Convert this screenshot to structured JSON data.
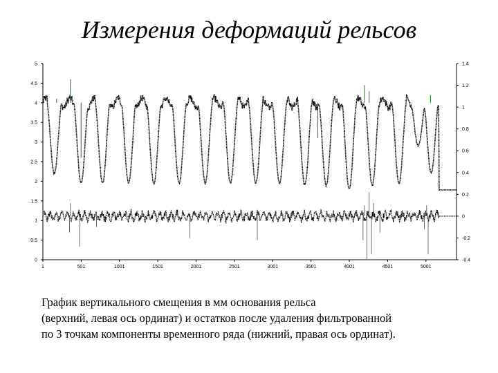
{
  "title": "Измерения деформаций рельсов",
  "caption": {
    "line1": "График вертикального смещения в мм основания рельса",
    "line2": "(верхний, левая ось ординат) и остатков после удаления фильтрованной",
    "line3": "по 3 точкам компоненты временного ряда (нижний, правая ось ординат)."
  },
  "chart_data": {
    "type": "line",
    "title": "",
    "xlabel": "",
    "ylabel": "",
    "xlim": [
      1,
      5400
    ],
    "x_ticks": [
      "1",
      "501",
      "1001",
      "1501",
      "2001",
      "2501",
      "3001",
      "3501",
      "4001",
      "4501",
      "5001"
    ],
    "y_left": {
      "lim": [
        0,
        5
      ],
      "ticks": [
        "0",
        "0.5",
        "1",
        "1.5",
        "2",
        "2.5",
        "3",
        "3.5",
        "4",
        "4.5",
        "5"
      ]
    },
    "y_right": {
      "lim": [
        -0.4,
        1.4
      ],
      "ticks": [
        "-0.4",
        "-0.2",
        "0",
        "0.2",
        "0.4",
        "0.6",
        "0.8",
        "1",
        "1.2",
        "1.4"
      ]
    },
    "grid": false,
    "series": [
      {
        "axis": "left",
        "color": "#000000",
        "highlight_color": "#1a7a1a",
        "baseline": 4.0,
        "tail_value": 1.78,
        "tail_from": 5170,
        "dips": [
          {
            "center": 150,
            "min": 2.2
          },
          {
            "center": 500,
            "min": 1.95
          },
          {
            "center": 780,
            "min": 1.95
          },
          {
            "center": 1120,
            "min": 1.95
          },
          {
            "center": 1450,
            "min": 1.95
          },
          {
            "center": 1780,
            "min": 1.95
          },
          {
            "center": 2120,
            "min": 1.95
          },
          {
            "center": 2450,
            "min": 1.95
          },
          {
            "center": 2780,
            "min": 1.95
          },
          {
            "center": 3090,
            "min": 1.95
          },
          {
            "center": 3420,
            "min": 1.9
          },
          {
            "center": 3700,
            "min": 1.9
          },
          {
            "center": 4000,
            "min": 1.8
          },
          {
            "center": 4300,
            "min": 1.9
          },
          {
            "center": 4650,
            "min": 1.95
          },
          {
            "center": 4900,
            "min": 2.9
          },
          {
            "center": 5070,
            "min": 2.2
          }
        ],
        "spikes": [
          {
            "x": 180,
            "value": 4.1
          },
          {
            "x": 360,
            "value": 4.6
          },
          {
            "x": 500,
            "value": 2.6
          },
          {
            "x": 4200,
            "value": 4.45
          },
          {
            "x": 4260,
            "value": 4.3
          },
          {
            "x": 3590,
            "value": 3.1
          },
          {
            "x": 5060,
            "value": 4.2
          }
        ]
      },
      {
        "axis": "right",
        "color": "#000000",
        "baseline": 0.0,
        "tail_value": 0.0,
        "tail_from": 5170,
        "spikes": [
          {
            "x": 350,
            "value": -0.15
          },
          {
            "x": 360,
            "value": 0.12
          },
          {
            "x": 480,
            "value": -0.28
          },
          {
            "x": 700,
            "value": -0.1
          },
          {
            "x": 1920,
            "value": -0.2
          },
          {
            "x": 2800,
            "value": -0.22
          },
          {
            "x": 4180,
            "value": -0.22
          },
          {
            "x": 4200,
            "value": 0.1
          },
          {
            "x": 4230,
            "value": -0.4
          },
          {
            "x": 4260,
            "value": 0.22
          },
          {
            "x": 4290,
            "value": -0.35
          },
          {
            "x": 4320,
            "value": 0.12
          },
          {
            "x": 4400,
            "value": -0.15
          },
          {
            "x": 4980,
            "value": -0.12
          },
          {
            "x": 5010,
            "value": 0.1
          },
          {
            "x": 5030,
            "value": -0.35
          },
          {
            "x": 5080,
            "value": 0.05
          }
        ]
      }
    ]
  }
}
